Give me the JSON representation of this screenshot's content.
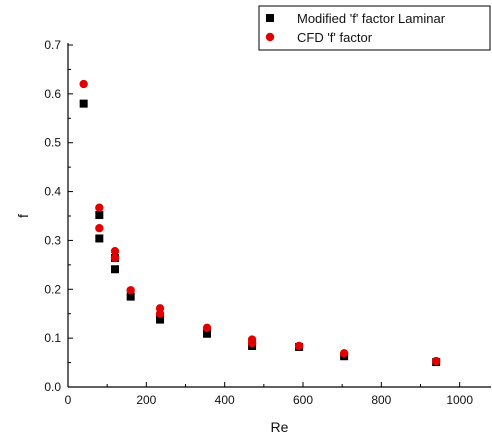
{
  "chart_data": {
    "type": "scatter",
    "title": "",
    "xlabel": "Re",
    "ylabel": "f",
    "xlim": [
      0,
      1080
    ],
    "ylim": [
      0,
      0.7
    ],
    "xticks": [
      0,
      200,
      400,
      600,
      800,
      1000
    ],
    "yticks": [
      0.0,
      0.1,
      0.2,
      0.3,
      0.4,
      0.5,
      0.6,
      0.7
    ],
    "xtick_labels": [
      "0",
      "200",
      "400",
      "600",
      "800",
      "1000"
    ],
    "ytick_labels": [
      "0.0",
      "0.1",
      "0.2",
      "0.3",
      "0.4",
      "0.5",
      "0.6",
      "0.7"
    ],
    "grid": false,
    "legend_position": "top-right",
    "series": [
      {
        "name": "Modified 'f' factor Laminar",
        "marker": "square",
        "color": "#000000",
        "x": [
          40,
          80,
          80,
          120,
          120,
          160,
          235,
          355,
          470,
          590,
          705,
          940
        ],
        "y": [
          0.58,
          0.352,
          0.304,
          0.264,
          0.241,
          0.185,
          0.138,
          0.109,
          0.084,
          0.082,
          0.063,
          0.051
        ]
      },
      {
        "name": "CFD 'f' factor",
        "marker": "circle",
        "color": "#e00000",
        "x": [
          40,
          80,
          80,
          120,
          120,
          160,
          235,
          235,
          355,
          470,
          470,
          590,
          705,
          940
        ],
        "y": [
          0.62,
          0.367,
          0.325,
          0.278,
          0.264,
          0.198,
          0.161,
          0.15,
          0.121,
          0.097,
          0.09,
          0.084,
          0.069,
          0.053
        ]
      }
    ]
  }
}
